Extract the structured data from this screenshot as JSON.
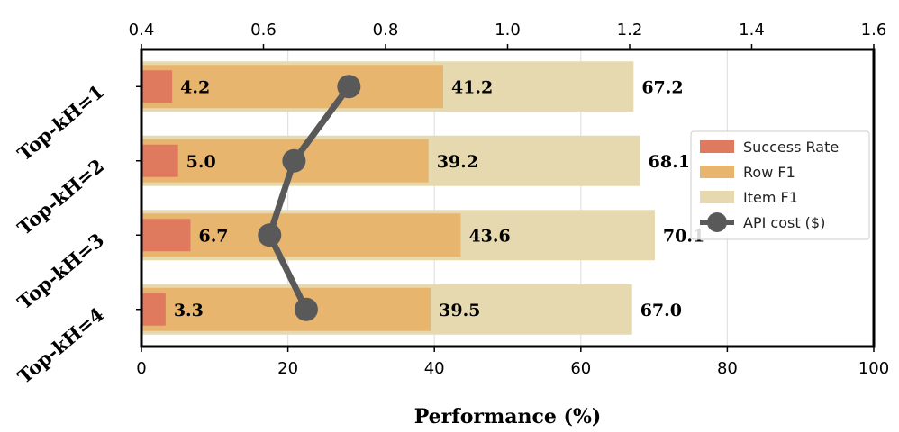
{
  "chart_data": {
    "type": "bar",
    "orientation": "horizontal",
    "categories": [
      "Top-kH=1",
      "Top-kH=2",
      "Top-kH=3",
      "Top-kH=4"
    ],
    "series": [
      {
        "name": "Success Rate",
        "values": [
          4.2,
          5.0,
          6.7,
          3.3
        ],
        "color": "#e07a5f"
      },
      {
        "name": "Row F1",
        "values": [
          41.2,
          39.2,
          43.6,
          39.5
        ],
        "color": "#e8b56f"
      },
      {
        "name": "Item F1",
        "values": [
          67.2,
          68.1,
          70.1,
          67.0
        ],
        "color": "#e6d9b0"
      }
    ],
    "line_series": {
      "name": "API cost ($)",
      "values": [
        0.74,
        0.65,
        0.61,
        0.67
      ],
      "color": "#595959"
    },
    "xlabel": "Performance (%)",
    "xlim": [
      0,
      100
    ],
    "x_ticks": [
      0,
      20,
      40,
      60,
      80,
      100
    ],
    "x2lim": [
      0.4,
      1.6
    ],
    "x2_ticks": [
      "0.4",
      "0.6",
      "0.8",
      "1.0",
      "1.2",
      "1.4",
      "1.6"
    ],
    "legend_position": "right",
    "grid": "vertical"
  }
}
